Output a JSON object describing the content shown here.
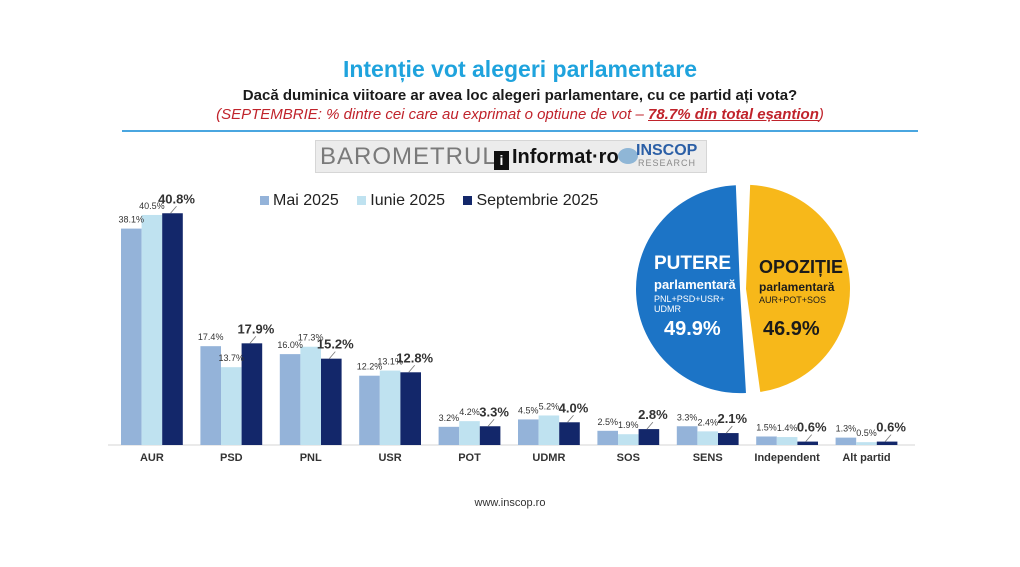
{
  "header": {
    "title": "Intenție vot alegeri parlamentare",
    "subtitle": "Dacă duminica viitoare ar avea loc alegeri parlamentare, cu ce partid ați vota?",
    "note_prefix": "(SEPTEMBRIE: % dintre cei care au exprimat o optiune de vot – ",
    "note_highlight": "78.7% din total eșantion",
    "note_suffix": ")"
  },
  "branding": {
    "barometer": "BAROMETRUL",
    "informat_icon": "i",
    "informat": "Informat·ro",
    "inscop": "INSCOP",
    "research": "RESEARCH"
  },
  "footer": "www.inscop.ro",
  "colors": {
    "mai": "#94b3d9",
    "iunie": "#bfe2f0",
    "septembrie": "#13276a",
    "putere": "#1c74c6",
    "opozitie": "#f7b81a"
  },
  "chart_data": [
    {
      "type": "bar",
      "categories": [
        "AUR",
        "PSD",
        "PNL",
        "USR",
        "POT",
        "UDMR",
        "SOS",
        "SENS",
        "Independent",
        "Alt partid"
      ],
      "series": [
        {
          "name": "Mai 2025",
          "values": [
            38.1,
            17.4,
            16.0,
            12.2,
            3.2,
            4.5,
            2.5,
            3.3,
            1.5,
            1.3
          ],
          "labels": [
            "38.1%",
            "17.4%",
            "16.0%",
            "12.2%",
            "3.2%",
            "4.5%",
            "2.5%",
            "3.3%",
            "1.5%",
            "1.3%"
          ]
        },
        {
          "name": "Iunie 2025",
          "values": [
            40.5,
            13.7,
            17.3,
            13.1,
            4.2,
            5.2,
            1.9,
            2.4,
            1.4,
            0.5
          ],
          "labels": [
            "40.5%",
            "13.7%",
            "17.3%",
            "13.1%",
            "4.2%",
            "5.2%",
            "1.9%",
            "2.4%",
            "1.4%",
            "0.5%"
          ]
        },
        {
          "name": "Septembrie 2025",
          "values": [
            40.8,
            17.9,
            15.2,
            12.8,
            3.3,
            4.0,
            2.8,
            2.1,
            0.6,
            0.6
          ],
          "labels": [
            "40.8%",
            "17.9%",
            "15.2%",
            "12.8%",
            "3.3%",
            "4.0%",
            "2.8%",
            "2.1%",
            "0.6%",
            "0.6%"
          ]
        }
      ],
      "ylim": [
        0,
        45
      ],
      "legend": "top"
    },
    {
      "type": "pie",
      "slices": [
        {
          "label": "PUTERE",
          "sublabel": "parlamentară",
          "detail_lines": [
            "PNL+PSD+USR+",
            "UDMR"
          ],
          "value": 49.9,
          "value_label": "49.9%"
        },
        {
          "label": "OPOZIȚIE",
          "sublabel": "parlamentară",
          "detail_lines": [
            "AUR+POT+SOS"
          ],
          "value": 46.9,
          "value_label": "46.9%"
        }
      ]
    }
  ]
}
